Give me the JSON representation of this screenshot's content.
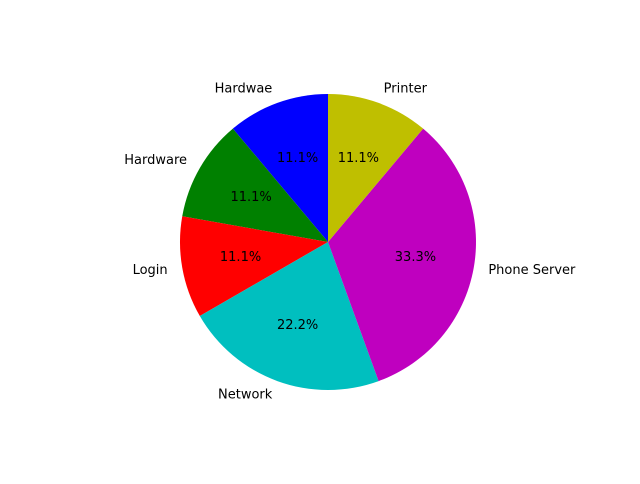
{
  "chart_data": {
    "type": "pie",
    "title": "",
    "labels": [
      "Hardwae",
      "Hardware",
      "Login",
      "Network",
      "Phone Server",
      "Printer"
    ],
    "values": [
      11.1,
      11.1,
      11.1,
      22.2,
      33.3,
      11.1
    ],
    "percent_labels": [
      "11.1%",
      "11.1%",
      "11.1%",
      "22.2%",
      "33.3%",
      "11.1%"
    ],
    "colors": [
      "#0000ff",
      "#008000",
      "#ff0000",
      "#00bfbf",
      "#bf00bf",
      "#bfbf00"
    ],
    "start_angle_deg": 90,
    "direction": "counterclockwise",
    "legend": "none"
  }
}
